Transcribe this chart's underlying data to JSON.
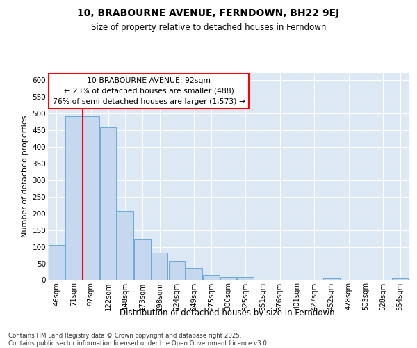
{
  "title": "10, BRABOURNE AVENUE, FERNDOWN, BH22 9EJ",
  "subtitle": "Size of property relative to detached houses in Ferndown",
  "xlabel": "Distribution of detached houses by size in Ferndown",
  "ylabel": "Number of detached properties",
  "categories": [
    "46sqm",
    "71sqm",
    "97sqm",
    "122sqm",
    "148sqm",
    "173sqm",
    "198sqm",
    "224sqm",
    "249sqm",
    "275sqm",
    "300sqm",
    "325sqm",
    "351sqm",
    "376sqm",
    "401sqm",
    "427sqm",
    "452sqm",
    "478sqm",
    "503sqm",
    "528sqm",
    "554sqm"
  ],
  "values": [
    105,
    490,
    490,
    458,
    207,
    122,
    82,
    58,
    37,
    15,
    10,
    10,
    0,
    0,
    0,
    0,
    5,
    0,
    0,
    0,
    5
  ],
  "bar_color": "#c5d8f0",
  "bar_edge_color": "#6aaad4",
  "red_line_index": 2,
  "annotation_title": "10 BRABOURNE AVENUE: 92sqm",
  "annotation_line1": "← 23% of detached houses are smaller (488)",
  "annotation_line2": "76% of semi-detached houses are larger (1,573) →",
  "ylim_max": 620,
  "yticks": [
    0,
    50,
    100,
    150,
    200,
    250,
    300,
    350,
    400,
    450,
    500,
    550,
    600
  ],
  "bg_color": "#dde8f5",
  "grid_color": "#ffffff",
  "footer_line1": "Contains HM Land Registry data © Crown copyright and database right 2025.",
  "footer_line2": "Contains public sector information licensed under the Open Government Licence v3.0."
}
